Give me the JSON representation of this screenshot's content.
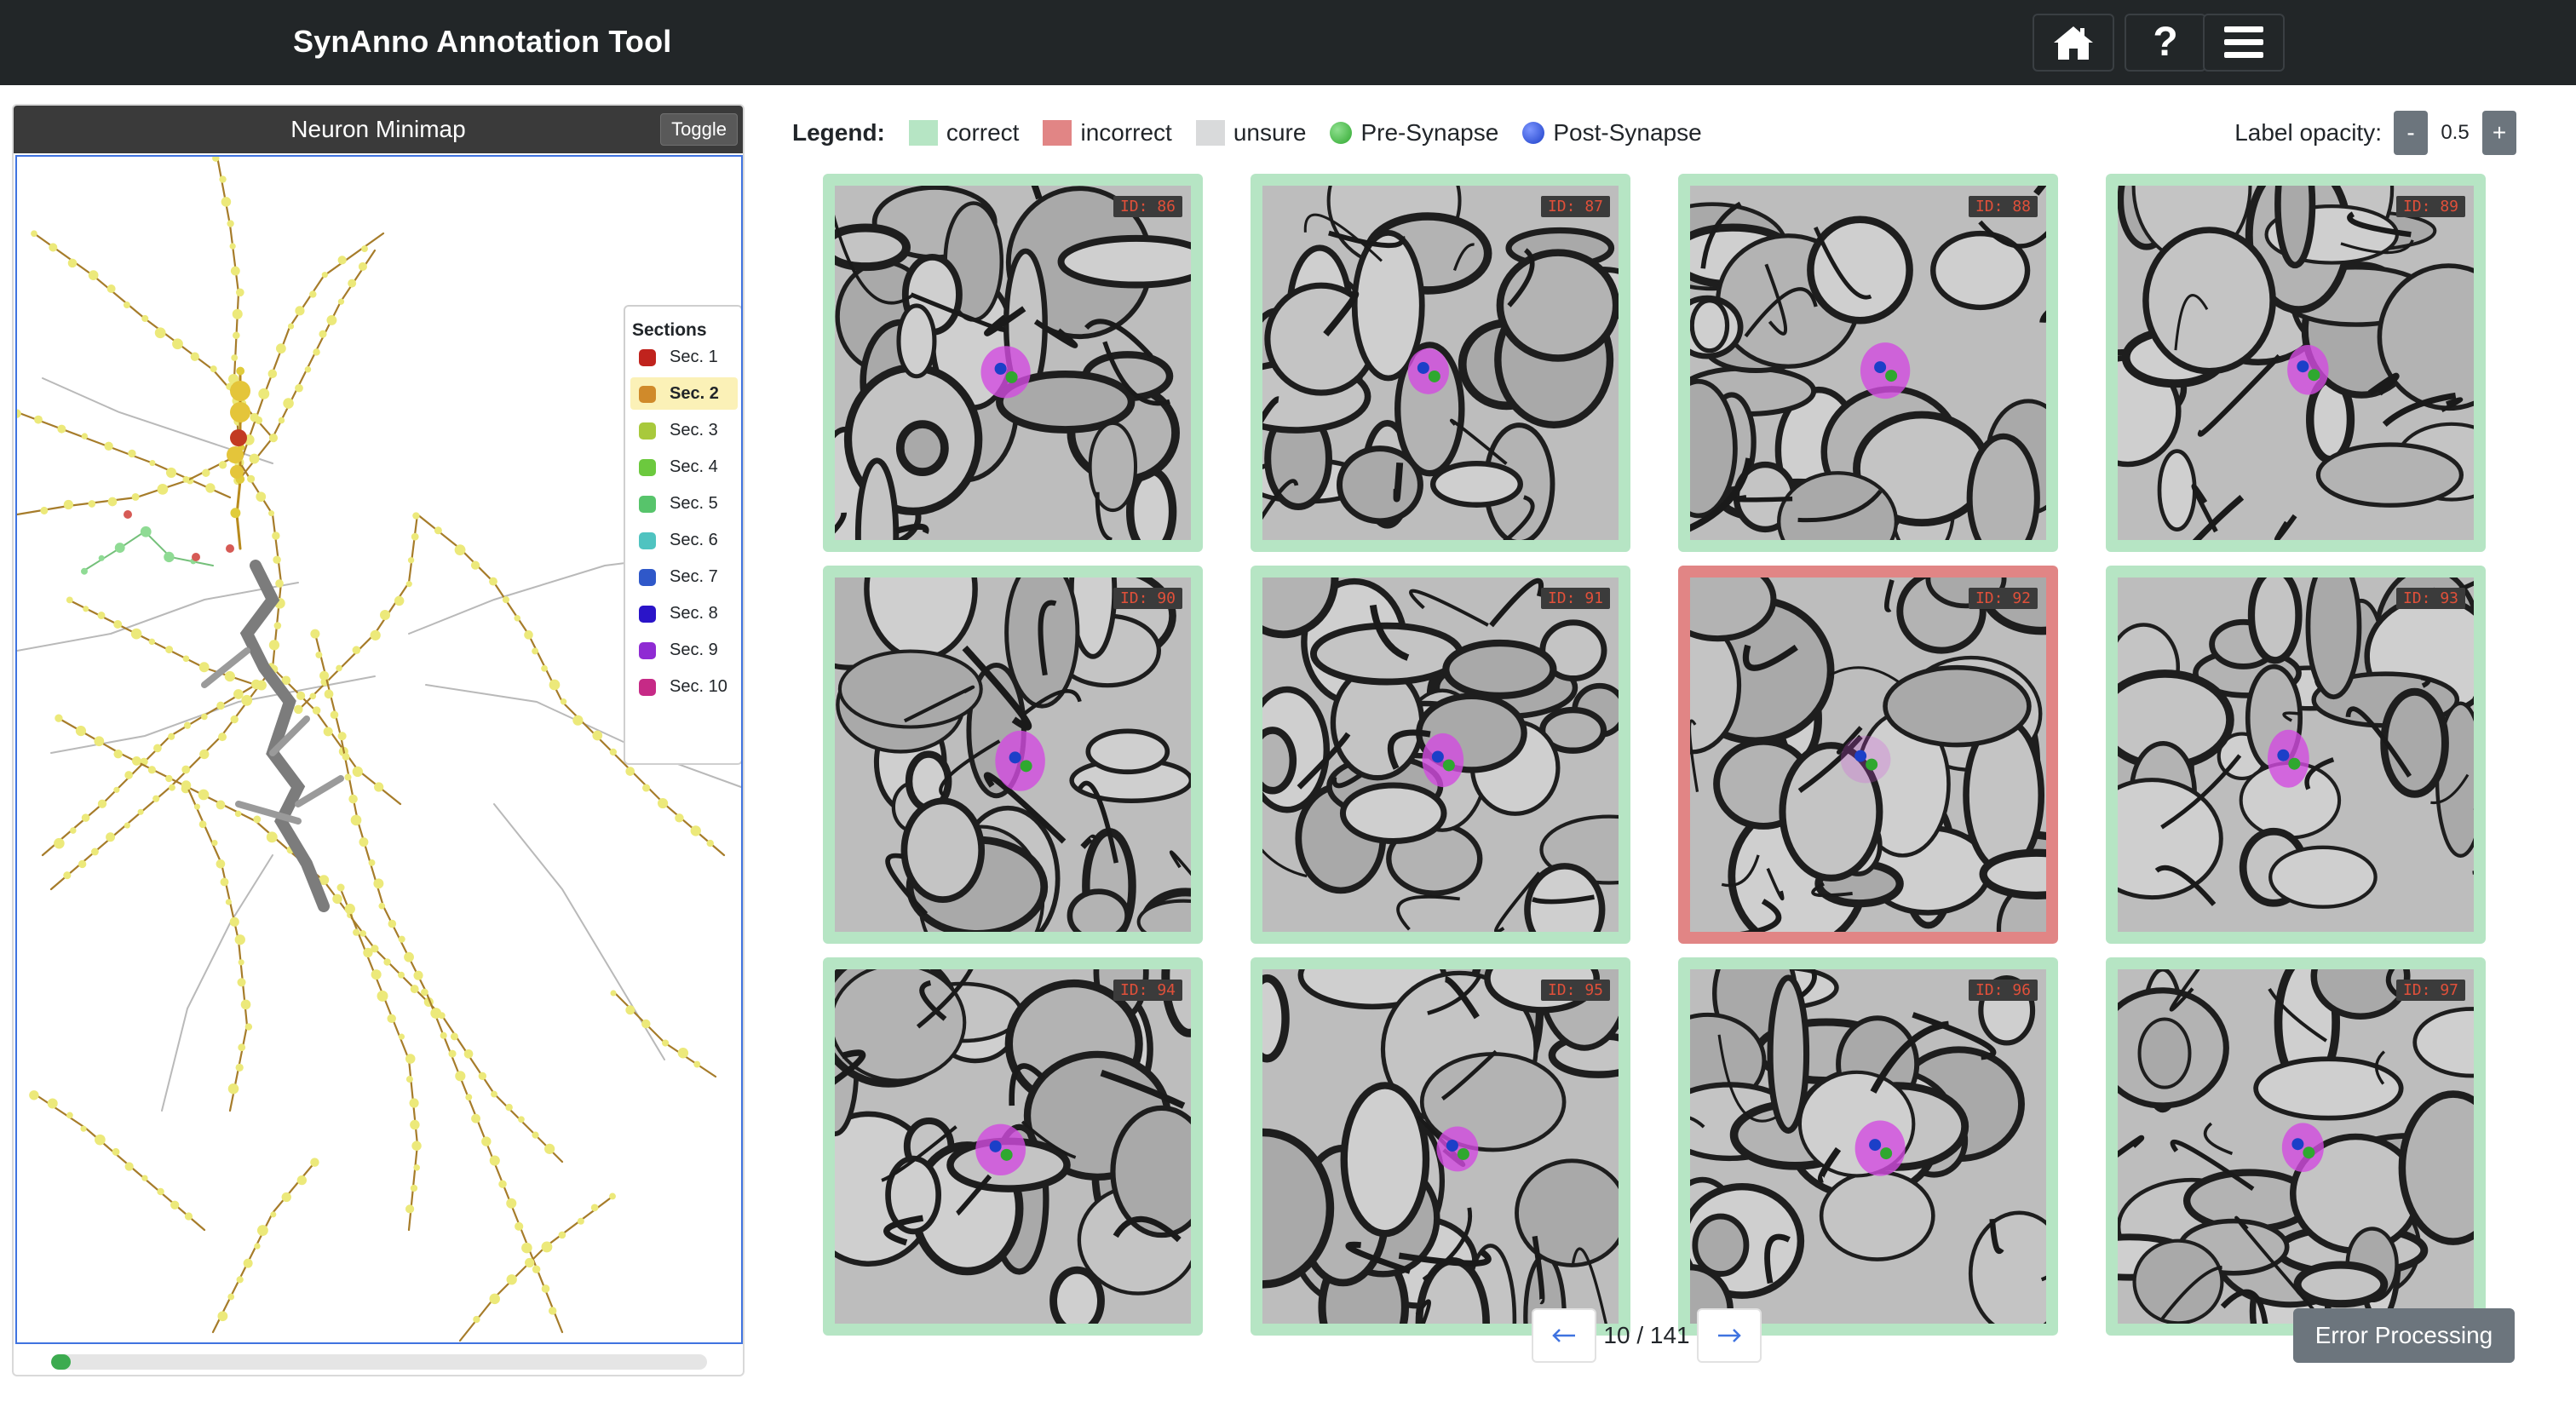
{
  "app": {
    "title": "SynAnno Annotation Tool"
  },
  "nav": {
    "home_icon": "home-icon",
    "help_label": "?",
    "menu_icon": "hamburger-menu-icon"
  },
  "minimap": {
    "title": "Neuron Minimap",
    "toggle_label": "Toggle",
    "progress": 0.03,
    "sections_title": "Sections",
    "sections": [
      {
        "label": "Sec. 1",
        "color": "#c0231d",
        "active": false
      },
      {
        "label": "Sec. 2",
        "color": "#d08a2a",
        "active": true
      },
      {
        "label": "Sec. 3",
        "color": "#a8c93c",
        "active": false
      },
      {
        "label": "Sec. 4",
        "color": "#6cc93e",
        "active": false
      },
      {
        "label": "Sec. 5",
        "color": "#57c46b",
        "active": false
      },
      {
        "label": "Sec. 6",
        "color": "#4fc3c0",
        "active": false
      },
      {
        "label": "Sec. 7",
        "color": "#2f58c9",
        "active": false
      },
      {
        "label": "Sec. 8",
        "color": "#2a14c8",
        "active": false
      },
      {
        "label": "Sec. 9",
        "color": "#8f2bd3",
        "active": false
      },
      {
        "label": "Sec. 10",
        "color": "#c62a86",
        "active": false
      }
    ]
  },
  "legend": {
    "title": "Legend:",
    "correct": {
      "label": "correct",
      "color": "#b6e5c4"
    },
    "incorrect": {
      "label": "incorrect",
      "color": "#e18585"
    },
    "unsure": {
      "label": "unsure",
      "color": "#d9dadb"
    },
    "pre": {
      "label": "Pre-Synapse",
      "color": "#2fa82f"
    },
    "post": {
      "label": "Post-Synapse",
      "color": "#1c3fc8"
    }
  },
  "opacity": {
    "label": "Label opacity:",
    "minus": "-",
    "value": "0.5",
    "plus": "+"
  },
  "cards": [
    {
      "id": "ID: 86",
      "status": "correct"
    },
    {
      "id": "ID: 87",
      "status": "correct"
    },
    {
      "id": "ID: 88",
      "status": "correct"
    },
    {
      "id": "ID: 89",
      "status": "correct"
    },
    {
      "id": "ID: 90",
      "status": "correct"
    },
    {
      "id": "ID: 91",
      "status": "correct"
    },
    {
      "id": "ID: 92",
      "status": "incorrect"
    },
    {
      "id": "ID: 93",
      "status": "correct"
    },
    {
      "id": "ID: 94",
      "status": "correct"
    },
    {
      "id": "ID: 95",
      "status": "correct"
    },
    {
      "id": "ID: 96",
      "status": "correct"
    },
    {
      "id": "ID: 97",
      "status": "correct"
    }
  ],
  "pagination": {
    "prev_icon": "arrow-left-icon",
    "info": "10 / 141",
    "next_icon": "arrow-right-icon"
  },
  "error_button": {
    "label": "Error Processing"
  }
}
